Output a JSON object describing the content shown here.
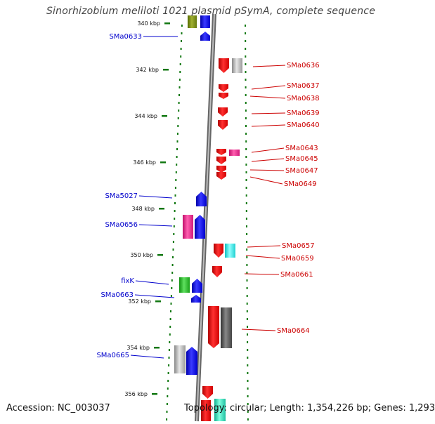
{
  "title": "Sinorhizobium meliloti 1021 plasmid pSymA, complete sequence",
  "footer": {
    "accession": "Accession: NC_003037",
    "topology": "Topology: circular; Length: 1,354,226 bp; Genes: 1,293"
  },
  "colors": {
    "forward_gene": "#0000ee",
    "reverse_gene": "#ee0000",
    "backbone": "#888888",
    "tick": "#117711",
    "label_forward": "#0000cc",
    "label_reverse": "#cc0000"
  },
  "scale_labels": [
    "340 kbp",
    "342 kbp",
    "344 kbp",
    "346 kbp",
    "348 kbp",
    "350 kbp",
    "352 kbp",
    "354 kbp",
    "356 kbp"
  ],
  "forward_labels": [
    "SMa0633",
    "SMa5027",
    "SMa0656",
    "fixK",
    "SMa0663",
    "SMa0665"
  ],
  "reverse_labels": [
    "SMa0636",
    "SMa0637",
    "SMa0638",
    "SMa0639",
    "SMa0640",
    "SMa0643",
    "SMa0645",
    "SMa0647",
    "SMa0649",
    "SMa0657",
    "SMa0659",
    "SMa0661",
    "SMa0664"
  ]
}
